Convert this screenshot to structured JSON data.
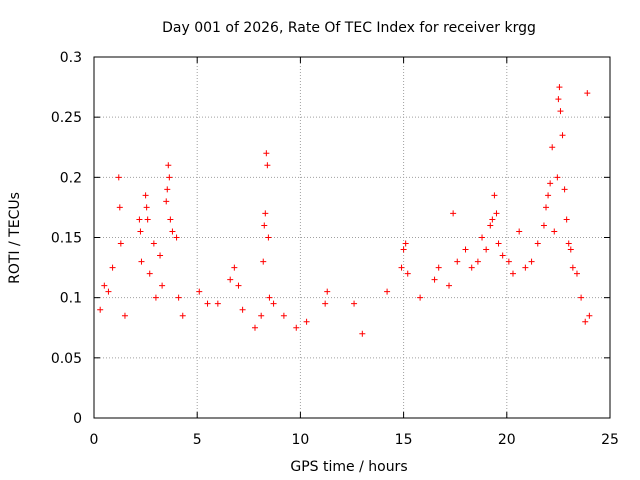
{
  "chart_data": {
    "type": "scatter",
    "title": "Day 001 of 2026, Rate Of TEC Index for receiver krgg",
    "xlabel": "GPS time / hours",
    "ylabel": "ROTI / TECUs",
    "xlim": [
      0,
      25
    ],
    "ylim": [
      0,
      0.3
    ],
    "x_ticks": [
      0,
      5,
      10,
      15,
      20,
      25
    ],
    "x_tick_labels": [
      "0",
      "5",
      "10",
      "15",
      "20",
      "25"
    ],
    "y_ticks": [
      0,
      0.05,
      0.1,
      0.15,
      0.2,
      0.25,
      0.3
    ],
    "y_tick_labels": [
      "0",
      "0.05",
      "0.1",
      "0.15",
      "0.2",
      "0.25",
      "0.3"
    ],
    "grid": true,
    "marker": "+",
    "color": "#ff0000",
    "series": [
      {
        "name": "ROTI",
        "points": [
          [
            0.3,
            0.09
          ],
          [
            0.5,
            0.11
          ],
          [
            0.7,
            0.105
          ],
          [
            0.9,
            0.125
          ],
          [
            1.2,
            0.2
          ],
          [
            1.25,
            0.175
          ],
          [
            1.3,
            0.145
          ],
          [
            1.5,
            0.085
          ],
          [
            2.2,
            0.165
          ],
          [
            2.25,
            0.155
          ],
          [
            2.3,
            0.13
          ],
          [
            2.5,
            0.185
          ],
          [
            2.55,
            0.175
          ],
          [
            2.6,
            0.165
          ],
          [
            2.7,
            0.12
          ],
          [
            2.9,
            0.145
          ],
          [
            3.0,
            0.1
          ],
          [
            3.2,
            0.135
          ],
          [
            3.3,
            0.11
          ],
          [
            3.5,
            0.18
          ],
          [
            3.55,
            0.19
          ],
          [
            3.6,
            0.21
          ],
          [
            3.65,
            0.2
          ],
          [
            3.7,
            0.165
          ],
          [
            3.8,
            0.155
          ],
          [
            4.0,
            0.15
          ],
          [
            4.1,
            0.1
          ],
          [
            4.3,
            0.085
          ],
          [
            5.1,
            0.105
          ],
          [
            5.5,
            0.095
          ],
          [
            6.0,
            0.095
          ],
          [
            6.6,
            0.115
          ],
          [
            6.8,
            0.125
          ],
          [
            7.0,
            0.11
          ],
          [
            7.2,
            0.09
          ],
          [
            7.8,
            0.075
          ],
          [
            8.1,
            0.085
          ],
          [
            8.2,
            0.13
          ],
          [
            8.25,
            0.16
          ],
          [
            8.3,
            0.17
          ],
          [
            8.35,
            0.22
          ],
          [
            8.4,
            0.21
          ],
          [
            8.45,
            0.15
          ],
          [
            8.5,
            0.1
          ],
          [
            8.7,
            0.095
          ],
          [
            9.2,
            0.085
          ],
          [
            9.8,
            0.075
          ],
          [
            10.3,
            0.08
          ],
          [
            11.2,
            0.095
          ],
          [
            11.3,
            0.105
          ],
          [
            12.6,
            0.095
          ],
          [
            13.0,
            0.07
          ],
          [
            14.2,
            0.105
          ],
          [
            14.9,
            0.125
          ],
          [
            15.0,
            0.14
          ],
          [
            15.1,
            0.145
          ],
          [
            15.2,
            0.12
          ],
          [
            15.8,
            0.1
          ],
          [
            16.5,
            0.115
          ],
          [
            16.7,
            0.125
          ],
          [
            17.2,
            0.11
          ],
          [
            17.4,
            0.17
          ],
          [
            17.6,
            0.13
          ],
          [
            18.0,
            0.14
          ],
          [
            18.3,
            0.125
          ],
          [
            18.6,
            0.13
          ],
          [
            18.8,
            0.15
          ],
          [
            19.0,
            0.14
          ],
          [
            19.2,
            0.16
          ],
          [
            19.3,
            0.165
          ],
          [
            19.4,
            0.185
          ],
          [
            19.5,
            0.17
          ],
          [
            19.6,
            0.145
          ],
          [
            19.8,
            0.135
          ],
          [
            20.1,
            0.13
          ],
          [
            20.3,
            0.12
          ],
          [
            20.6,
            0.155
          ],
          [
            20.9,
            0.125
          ],
          [
            21.2,
            0.13
          ],
          [
            21.5,
            0.145
          ],
          [
            21.8,
            0.16
          ],
          [
            21.9,
            0.175
          ],
          [
            22.0,
            0.185
          ],
          [
            22.1,
            0.195
          ],
          [
            22.2,
            0.225
          ],
          [
            22.3,
            0.155
          ],
          [
            22.45,
            0.2
          ],
          [
            22.5,
            0.265
          ],
          [
            22.55,
            0.275
          ],
          [
            22.6,
            0.255
          ],
          [
            22.7,
            0.235
          ],
          [
            22.8,
            0.19
          ],
          [
            22.9,
            0.165
          ],
          [
            23.0,
            0.145
          ],
          [
            23.1,
            0.14
          ],
          [
            23.2,
            0.125
          ],
          [
            23.4,
            0.12
          ],
          [
            23.6,
            0.1
          ],
          [
            23.8,
            0.08
          ],
          [
            23.9,
            0.27
          ],
          [
            24.0,
            0.085
          ]
        ]
      }
    ]
  }
}
